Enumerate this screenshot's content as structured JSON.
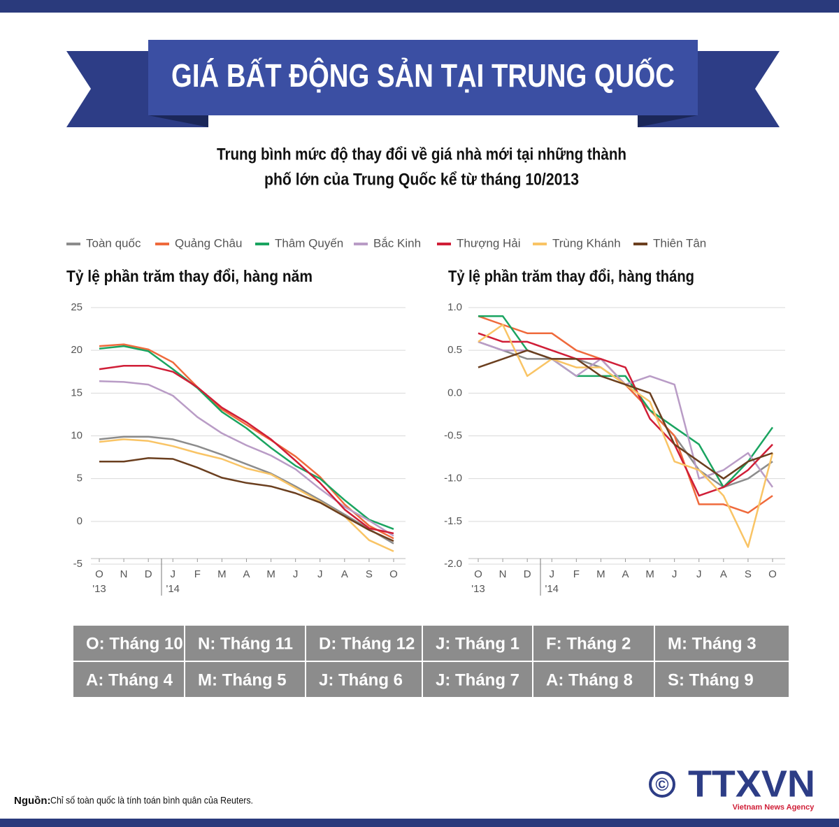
{
  "header": {
    "title": "GIÁ BẤT ĐỘNG SẢN TẠI TRUNG QUỐC",
    "subtitle_lines": [
      "Trung bình mức độ thay đổi về giá nhà mới tại những thành",
      "phố lớn của Trung Quốc kể từ tháng 10/2013"
    ]
  },
  "chart_data": [
    {
      "type": "line",
      "title": "Tỷ lệ phần trăm thay đổi, hàng năm",
      "categories": [
        "O",
        "N",
        "D",
        "J",
        "F",
        "M",
        "A",
        "M",
        "J",
        "J",
        "A",
        "S",
        "O"
      ],
      "x_group_labels": [
        "'13",
        "'14"
      ],
      "ylim": [
        -5,
        25
      ],
      "yticks": [
        -5,
        0,
        5,
        10,
        15,
        20,
        25
      ],
      "grid": true,
      "series": [
        {
          "name": "Toàn quốc",
          "color": "#8c8c8c",
          "values": [
            9.6,
            9.9,
            9.9,
            9.6,
            8.8,
            7.8,
            6.7,
            5.6,
            4.1,
            2.5,
            0.8,
            -0.9,
            -2.6
          ]
        },
        {
          "name": "Quảng Châu",
          "color": "#ef6a3c",
          "values": [
            20.5,
            20.7,
            20.1,
            18.6,
            15.7,
            13.1,
            11.3,
            9.5,
            7.6,
            5.2,
            2.0,
            -0.5,
            -2.0
          ]
        },
        {
          "name": "Thâm Quyến",
          "color": "#1aa460",
          "values": [
            20.2,
            20.5,
            19.9,
            17.8,
            15.6,
            12.8,
            10.9,
            8.6,
            6.5,
            5.0,
            2.5,
            0.2,
            -0.9
          ]
        },
        {
          "name": "Bắc Kinh",
          "color": "#b99cc6",
          "values": [
            16.4,
            16.3,
            16.0,
            14.7,
            12.2,
            10.3,
            8.9,
            7.7,
            6.1,
            3.8,
            1.7,
            0.1,
            -1.7
          ]
        },
        {
          "name": "Thượng Hải",
          "color": "#d01e37",
          "values": [
            17.8,
            18.2,
            18.2,
            17.5,
            15.7,
            13.3,
            11.6,
            9.6,
            7.1,
            4.5,
            1.4,
            -0.8,
            -1.4
          ]
        },
        {
          "name": "Trùng Khánh",
          "color": "#f9c465",
          "values": [
            9.3,
            9.6,
            9.4,
            8.8,
            8.0,
            7.3,
            6.2,
            5.5,
            3.9,
            2.3,
            0.6,
            -2.2,
            -3.5
          ]
        },
        {
          "name": "Thiên Tân",
          "color": "#6b3f1f",
          "values": [
            7.0,
            7.0,
            7.4,
            7.3,
            6.3,
            5.1,
            4.5,
            4.1,
            3.3,
            2.2,
            0.6,
            -1.0,
            -2.3
          ]
        }
      ]
    },
    {
      "type": "line",
      "title": "Tỷ lệ phần trăm thay đổi, hàng tháng",
      "categories": [
        "O",
        "N",
        "D",
        "J",
        "F",
        "M",
        "A",
        "M",
        "J",
        "J",
        "A",
        "S",
        "O"
      ],
      "x_group_labels": [
        "'13",
        "'14"
      ],
      "ylim": [
        -2,
        1
      ],
      "yticks": [
        {
          "value": -2,
          "label": "-2.0"
        },
        -1.5,
        {
          "value": -1,
          "label": "-1.0"
        },
        -0.5,
        {
          "value": 0,
          "label": "0.0"
        },
        0.5,
        {
          "value": 1,
          "label": "1.0"
        }
      ],
      "grid": true,
      "series": [
        {
          "values": [
            0.6,
            0.5,
            0.4,
            0.4,
            0.4,
            0.3,
            0.1,
            -0.2,
            -0.5,
            -0.9,
            -1.1,
            -1.0,
            -0.8
          ]
        },
        {
          "values": [
            0.9,
            0.8,
            0.7,
            0.7,
            0.5,
            0.4,
            0.1,
            -0.2,
            -0.5,
            -1.3,
            -1.3,
            -1.4,
            -1.2
          ]
        },
        {
          "values": [
            0.9,
            0.9,
            0.5,
            0.4,
            0.2,
            0.2,
            0.2,
            -0.2,
            -0.4,
            -0.6,
            -1.1,
            -0.8,
            -0.4
          ]
        },
        {
          "values": [
            0.6,
            0.5,
            0.5,
            0.4,
            0.2,
            0.4,
            0.1,
            0.2,
            0.1,
            -1.0,
            -0.9,
            -0.7,
            -1.1
          ]
        },
        {
          "values": [
            0.7,
            0.6,
            0.6,
            0.5,
            0.4,
            0.4,
            0.3,
            -0.3,
            -0.6,
            -1.2,
            -1.1,
            -0.9,
            -0.6
          ]
        },
        {
          "values": [
            0.6,
            0.8,
            0.2,
            0.4,
            0.3,
            0.3,
            0.1,
            -0.1,
            -0.8,
            -0.9,
            -1.2,
            -1.8,
            -0.7
          ]
        },
        {
          "values": [
            0.3,
            0.4,
            0.5,
            0.4,
            0.4,
            0.2,
            0.1,
            0.0,
            -0.6,
            -0.8,
            -1.0,
            -0.8,
            -0.7
          ]
        }
      ]
    }
  ],
  "month_key": {
    "rows": [
      [
        "O: Tháng 10",
        "N: Tháng 11",
        "D: Tháng 12",
        "J: Tháng 1",
        "F: Tháng 2",
        "M: Tháng 3"
      ],
      [
        "A: Tháng 4",
        "M: Tháng 5",
        "J: Tháng 6",
        "J: Tháng 7",
        "A: Tháng 8",
        "S: Tháng 9"
      ]
    ]
  },
  "source": {
    "label": "Nguồn:",
    "text": "Chỉ số toàn quốc là tính toán bình quân của Reuters."
  },
  "logo": {
    "symbol": "©",
    "name": "TTXVN",
    "tagline": "Vietnam News Agency"
  }
}
